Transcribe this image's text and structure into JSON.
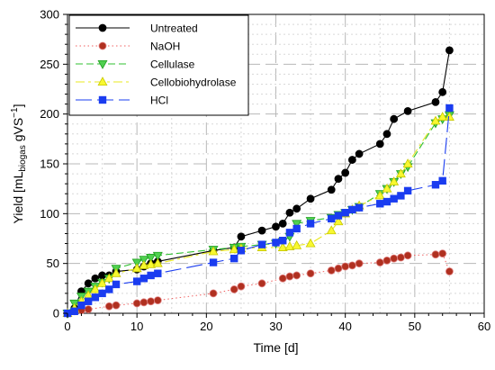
{
  "chart_data": {
    "type": "line",
    "xlabel": "Time [d]",
    "ylabel": {
      "main": "Yield [mL",
      "sub": "biogas",
      "mid": " gVS",
      "sup": "−1",
      "end": "]"
    },
    "xlim": [
      0,
      60
    ],
    "ylim": [
      0,
      300
    ],
    "xticks": [
      "0",
      "10",
      "20",
      "30",
      "40",
      "50",
      "60"
    ],
    "yticks": [
      "0",
      "50",
      "100",
      "150",
      "200",
      "250",
      "300"
    ],
    "grid": true,
    "legend_position": "top-left",
    "series": [
      {
        "name": "Untreated",
        "color": "#000000",
        "marker": "circle",
        "dash": "solid",
        "marker_fill": "#000000",
        "x": [
          0,
          1,
          2,
          3,
          4,
          5,
          6,
          7,
          10,
          11,
          12,
          13,
          21,
          24,
          25,
          28,
          30,
          31,
          32,
          33,
          35,
          38,
          39,
          40,
          41,
          42,
          45,
          46,
          47,
          49,
          53,
          54,
          55
        ],
        "y": [
          0,
          5,
          22,
          30,
          35,
          38,
          38,
          42,
          44,
          47,
          50,
          52,
          63,
          66,
          77,
          83,
          87,
          90,
          101,
          105,
          115,
          124,
          135,
          141,
          154,
          160,
          170,
          180,
          195,
          203,
          212,
          222,
          264
        ]
      },
      {
        "name": "NaOH",
        "color": "#f06060",
        "marker": "circle",
        "dash": "dotted",
        "marker_fill": "#b03020",
        "x": [
          0,
          1,
          2,
          3,
          6,
          7,
          10,
          11,
          12,
          13,
          21,
          24,
          25,
          28,
          31,
          32,
          33,
          35,
          38,
          39,
          40,
          41,
          42,
          45,
          46,
          47,
          48,
          49,
          53,
          54,
          55
        ],
        "y": [
          0,
          2,
          3,
          4,
          7,
          8,
          10,
          11,
          12,
          13,
          20,
          24,
          27,
          30,
          35,
          37,
          38,
          40,
          43,
          45,
          47,
          48,
          50,
          51,
          53,
          55,
          56,
          58,
          59,
          60,
          42
        ]
      },
      {
        "name": "Cellulase",
        "color": "#30c030",
        "marker": "triangle-down",
        "dash": "dashed",
        "marker_fill": "#50d050",
        "x": [
          0,
          1,
          2,
          3,
          4,
          5,
          6,
          7,
          10,
          11,
          12,
          13,
          21,
          24,
          25,
          28,
          30,
          31,
          32,
          33,
          35,
          38,
          39,
          40,
          41,
          42,
          45,
          46,
          47,
          48,
          49,
          53,
          54,
          55
        ],
        "y": [
          0,
          10,
          17,
          22,
          27,
          31,
          35,
          45,
          51,
          54,
          56,
          58,
          64,
          66,
          67,
          69,
          70,
          72,
          77,
          90,
          93,
          96,
          99,
          101,
          104,
          107,
          120,
          125,
          132,
          140,
          147,
          191,
          195,
          199
        ]
      },
      {
        "name": "Cellobiohydrolase",
        "color": "#e8e820",
        "marker": "triangle-up",
        "dash": "dashdot",
        "marker_fill": "#f8f830",
        "x": [
          0,
          1,
          2,
          3,
          4,
          5,
          6,
          7,
          10,
          11,
          12,
          13,
          21,
          24,
          25,
          28,
          31,
          32,
          33,
          35,
          38,
          39,
          40,
          41,
          42,
          45,
          46,
          47,
          48,
          49,
          53,
          54,
          55
        ],
        "y": [
          0,
          5,
          12,
          18,
          24,
          30,
          35,
          40,
          45,
          48,
          49,
          50,
          62,
          64,
          65,
          66,
          66,
          67,
          68,
          70,
          83,
          92,
          100,
          104,
          108,
          118,
          125,
          132,
          140,
          150,
          193,
          197,
          197
        ]
      },
      {
        "name": "HCl",
        "color": "#1a3cf0",
        "marker": "square",
        "dash": "longdash",
        "marker_fill": "#1a3cf0",
        "x": [
          0,
          1,
          2,
          3,
          4,
          5,
          6,
          7,
          10,
          11,
          12,
          13,
          21,
          24,
          25,
          28,
          30,
          31,
          32,
          33,
          35,
          38,
          39,
          40,
          41,
          42,
          45,
          46,
          47,
          48,
          49,
          53,
          54,
          55
        ],
        "y": [
          0,
          2,
          8,
          12,
          16,
          20,
          24,
          29,
          32,
          35,
          38,
          40,
          51,
          55,
          63,
          69,
          71,
          73,
          81,
          85,
          90,
          95,
          98,
          101,
          104,
          106,
          110,
          112,
          115,
          118,
          123,
          129,
          133,
          206
        ]
      }
    ]
  }
}
